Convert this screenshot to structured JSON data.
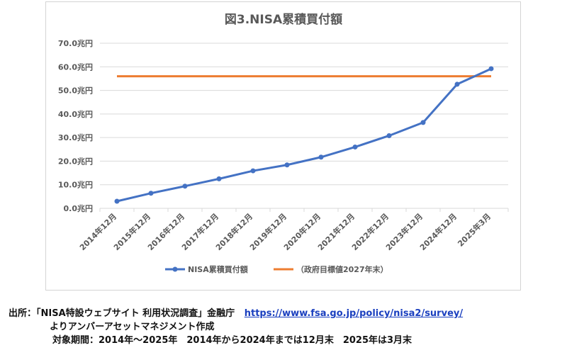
{
  "chart_data": {
    "type": "line",
    "title": "図3.NISA累積買付額",
    "xlabel": "",
    "ylabel": "",
    "categories": [
      "2014年12月",
      "2015年12月",
      "2016年12月",
      "2017年12月",
      "2018年12月",
      "2019年12月",
      "2020年12月",
      "2021年12月",
      "2022年12月",
      "2023年12月",
      "2024年12月",
      "2025年3月"
    ],
    "series": [
      {
        "name": "NISA累積買付額",
        "color": "#4472c4",
        "values": [
          3.0,
          6.4,
          9.4,
          12.5,
          15.9,
          18.4,
          21.7,
          26.0,
          30.8,
          36.4,
          52.6,
          59.2
        ]
      },
      {
        "name": "（政府目標値2027年末）",
        "color": "#ed7d31",
        "values": [
          56,
          56,
          56,
          56,
          56,
          56,
          56,
          56,
          56,
          56,
          56,
          56
        ]
      }
    ],
    "yticks": [
      "0.0兆円",
      "10.0兆円",
      "20.0兆円",
      "30.0兆円",
      "40.0兆円",
      "50.0兆円",
      "60.0兆円",
      "70.0兆円"
    ],
    "ylim": [
      0,
      70
    ],
    "grid": true,
    "legend_position": "bottom"
  },
  "source": {
    "line1_prefix": "出所：「NISA特設ウェブサイト 利用状況調査」金融庁",
    "url": "https://www.fsa.go.jp/policy/nisa2/survey/",
    "line2": "よりアンバーアセットマネジメント作成",
    "line3": "対象期間：2014年～2025年　2014年から2024年までは12月末　2025年は3月末"
  }
}
